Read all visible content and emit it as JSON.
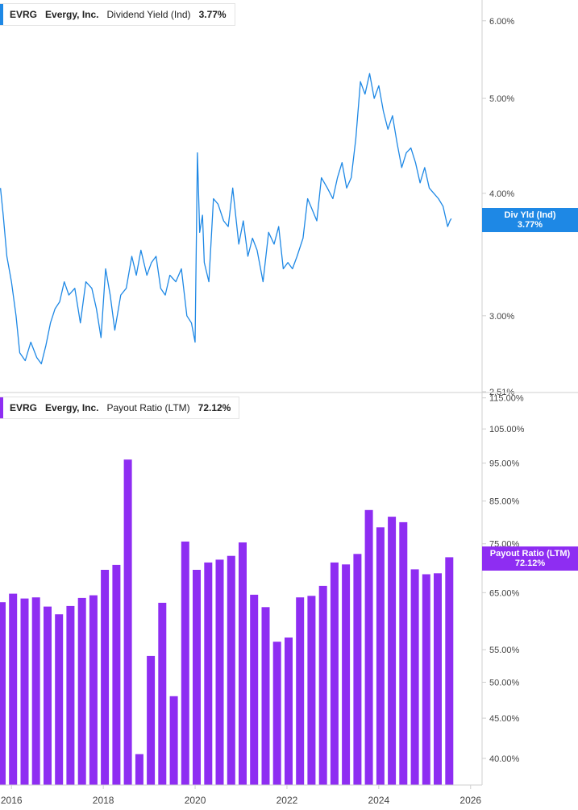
{
  "top_legend": {
    "ticker": "EVRG",
    "company": "Evergy, Inc.",
    "metric": "Dividend Yield (Ind)",
    "value": "3.77%"
  },
  "top_tag": {
    "label": "Div Yld (Ind)",
    "value": "3.77%"
  },
  "bottom_legend": {
    "ticker": "EVRG",
    "company": "Evergy, Inc.",
    "metric": "Payout Ratio (LTM)",
    "value": "72.12%"
  },
  "bottom_tag": {
    "label": "Payout Ratio (LTM)",
    "value": "72.12%"
  },
  "colors": {
    "yield_line": "#1e88e5",
    "payout_bar": "#8e2df2",
    "axis": "#cfcfcf",
    "text": "#444444"
  },
  "chart_data": [
    {
      "type": "line",
      "title": "Dividend Yield (Ind)",
      "y_scale": "log",
      "ylim": [
        2.51,
        6.3
      ],
      "y_ticks": [
        "6.00%",
        "5.00%",
        "4.00%",
        "3.00%",
        "2.51%"
      ],
      "y_tick_values": [
        6.0,
        5.0,
        4.0,
        3.0,
        2.51
      ],
      "xlim": [
        2015.75,
        2026.25
      ],
      "x_ticks": [
        "2016",
        "2018",
        "2020",
        "2022",
        "2024",
        "2026"
      ],
      "x_tick_values": [
        2016,
        2018,
        2020,
        2022,
        2024,
        2026
      ],
      "series": [
        {
          "name": "Div Yld (Ind)",
          "x": [
            2015.76,
            2015.82,
            2015.9,
            2016.0,
            2016.1,
            2016.18,
            2016.3,
            2016.42,
            2016.55,
            2016.65,
            2016.75,
            2016.85,
            2016.95,
            2017.05,
            2017.15,
            2017.25,
            2017.38,
            2017.5,
            2017.62,
            2017.75,
            2017.85,
            2017.95,
            2018.05,
            2018.15,
            2018.25,
            2018.38,
            2018.5,
            2018.62,
            2018.72,
            2018.82,
            2018.95,
            2019.05,
            2019.15,
            2019.25,
            2019.35,
            2019.45,
            2019.58,
            2019.7,
            2019.82,
            2019.92,
            2020.0,
            2020.05,
            2020.1,
            2020.16,
            2020.2,
            2020.3,
            2020.4,
            2020.5,
            2020.62,
            2020.72,
            2020.82,
            2020.95,
            2021.05,
            2021.15,
            2021.25,
            2021.35,
            2021.48,
            2021.6,
            2021.72,
            2021.82,
            2021.92,
            2022.02,
            2022.12,
            2022.22,
            2022.35,
            2022.45,
            2022.55,
            2022.65,
            2022.75,
            2022.88,
            2023.0,
            2023.1,
            2023.2,
            2023.3,
            2023.4,
            2023.5,
            2023.6,
            2023.7,
            2023.8,
            2023.9,
            2024.0,
            2024.1,
            2024.2,
            2024.3,
            2024.4,
            2024.5,
            2024.6,
            2024.7,
            2024.8,
            2024.9,
            2025.0,
            2025.1,
            2025.2,
            2025.3,
            2025.4,
            2025.5,
            2025.55,
            2025.58
          ],
          "values": [
            4.05,
            3.8,
            3.45,
            3.25,
            3.0,
            2.75,
            2.7,
            2.82,
            2.72,
            2.68,
            2.8,
            2.95,
            3.05,
            3.1,
            3.25,
            3.15,
            3.2,
            2.95,
            3.25,
            3.2,
            3.05,
            2.85,
            3.35,
            3.15,
            2.9,
            3.15,
            3.2,
            3.45,
            3.3,
            3.5,
            3.3,
            3.4,
            3.45,
            3.2,
            3.15,
            3.3,
            3.25,
            3.35,
            3.0,
            2.95,
            2.82,
            4.4,
            3.65,
            3.8,
            3.4,
            3.25,
            3.95,
            3.9,
            3.75,
            3.7,
            4.05,
            3.55,
            3.75,
            3.45,
            3.6,
            3.5,
            3.25,
            3.65,
            3.55,
            3.7,
            3.35,
            3.4,
            3.35,
            3.45,
            3.6,
            3.95,
            3.85,
            3.75,
            4.15,
            4.05,
            3.95,
            4.15,
            4.3,
            4.05,
            4.15,
            4.55,
            5.2,
            5.05,
            5.3,
            5.0,
            5.15,
            4.85,
            4.65,
            4.8,
            4.5,
            4.25,
            4.4,
            4.45,
            4.3,
            4.1,
            4.25,
            4.05,
            4.0,
            3.95,
            3.88,
            3.7,
            3.75,
            3.77
          ]
        }
      ]
    },
    {
      "type": "bar",
      "title": "Payout Ratio (LTM)",
      "y_scale": "log",
      "ylim": [
        37.0,
        116.0
      ],
      "y_ticks": [
        "115.00%",
        "105.00%",
        "95.00%",
        "85.00%",
        "75.00%",
        "65.00%",
        "55.00%",
        "50.00%",
        "45.00%",
        "40.00%"
      ],
      "y_tick_values": [
        115,
        105,
        95,
        85,
        75,
        65,
        55,
        50,
        45,
        40
      ],
      "xlim": [
        2015.75,
        2026.25
      ],
      "x_ticks": [
        "2016",
        "2018",
        "2020",
        "2022",
        "2024",
        "2026"
      ],
      "x_tick_values": [
        2016,
        2018,
        2020,
        2022,
        2024,
        2026
      ],
      "series": [
        {
          "name": "Payout Ratio (LTM)",
          "x": [
            2015.75,
            2016.0,
            2016.25,
            2016.5,
            2016.75,
            2017.0,
            2017.25,
            2017.5,
            2017.75,
            2018.0,
            2018.25,
            2018.5,
            2018.75,
            2019.0,
            2019.25,
            2019.5,
            2019.75,
            2020.0,
            2020.25,
            2020.5,
            2020.75,
            2021.0,
            2021.25,
            2021.5,
            2021.75,
            2022.0,
            2022.25,
            2022.5,
            2022.75,
            2023.0,
            2023.25,
            2023.5,
            2023.75,
            2024.0,
            2024.25,
            2024.5,
            2024.75,
            2025.0,
            2025.25,
            2025.5
          ],
          "values": [
            63.2,
            64.8,
            63.9,
            64.1,
            62.4,
            61.0,
            62.5,
            64.0,
            64.5,
            69.5,
            70.5,
            96.0,
            40.5,
            54.0,
            63.1,
            48.0,
            75.5,
            69.5,
            71.0,
            71.6,
            72.4,
            75.3,
            64.6,
            62.3,
            56.3,
            57.0,
            64.1,
            64.4,
            66.3,
            71.0,
            70.6,
            72.8,
            82.8,
            78.7,
            81.2,
            79.9,
            69.6,
            68.6,
            68.8,
            72.1
          ]
        }
      ]
    }
  ]
}
